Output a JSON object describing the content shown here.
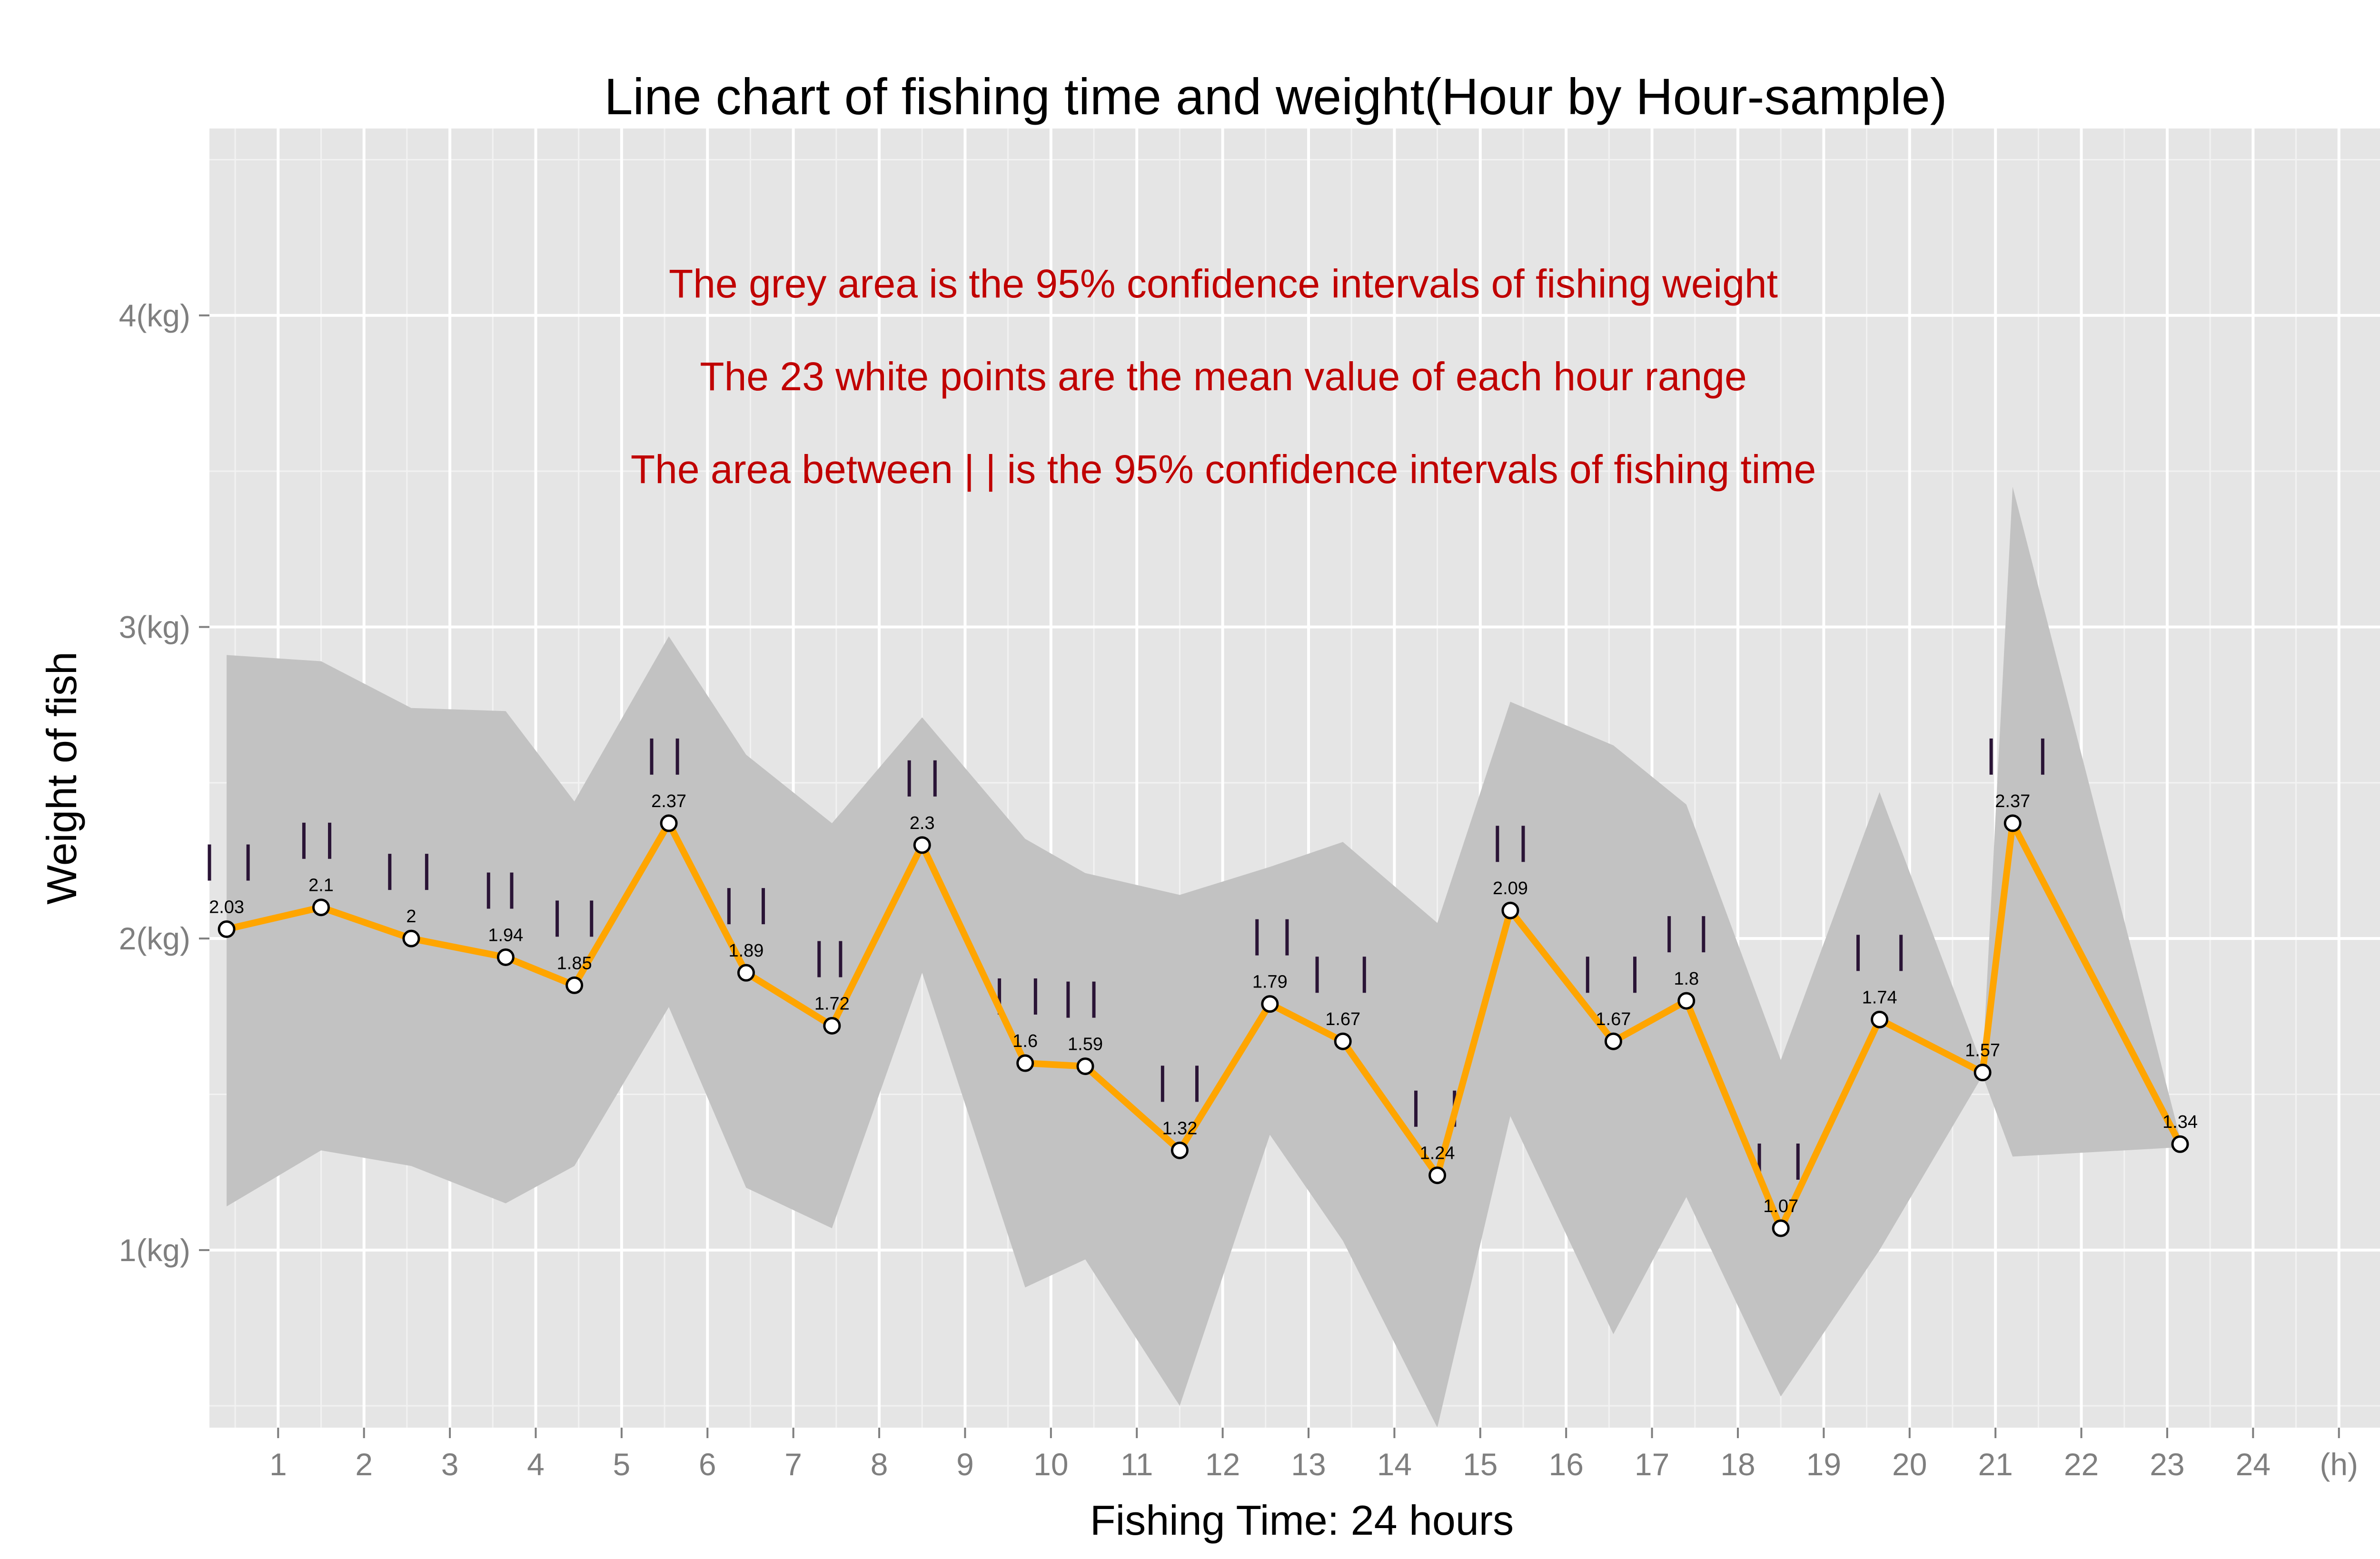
{
  "chart_data": {
    "type": "line",
    "title": "Line chart of fishing time and weight(Hour by Hour-sample)",
    "xlabel": "Fishing Time: 24 hours",
    "ylabel": "Weight of fish",
    "xlim": [
      0.2,
      25.7
    ],
    "ylim": [
      0.43,
      4.6
    ],
    "x_ticks": [
      1,
      2,
      3,
      4,
      5,
      6,
      7,
      8,
      9,
      10,
      11,
      12,
      13,
      14,
      15,
      16,
      17,
      18,
      19,
      20,
      21,
      22,
      23,
      24
    ],
    "x_tick_labels": [
      "1",
      "2",
      "3",
      "4",
      "5",
      "6",
      "7",
      "8",
      "9",
      "10",
      "11",
      "12",
      "13",
      "14",
      "15",
      "16",
      "17",
      "18",
      "19",
      "20",
      "21",
      "22",
      "23",
      "24"
    ],
    "x_unit_label": "(h)",
    "x_unit_position": 25,
    "y_ticks": [
      1,
      2,
      3,
      4
    ],
    "y_tick_labels": [
      "1(kg)",
      "2(kg)",
      "3(kg)",
      "4(kg)"
    ],
    "grid": true,
    "annotations": [
      "The grey area is the 95% confidence intervals of fishing weight",
      "The 23 white points are the mean value of each hour range",
      "The area between | | is the 95% confidence intervals of fishing time"
    ],
    "series": [
      {
        "line_color": "#ffa500",
        "point_color": "#ffffff",
        "band_color": "#c2c2c2",
        "points": [
          {
            "x": 0.4,
            "y": 2.03,
            "label": "2.03",
            "lo": 1.14,
            "hi": 2.91,
            "t_lo": 0.2,
            "t_hi": 0.65
          },
          {
            "x": 1.5,
            "y": 2.1,
            "label": "2.1",
            "lo": 1.32,
            "hi": 2.89,
            "t_lo": 1.3,
            "t_hi": 1.6
          },
          {
            "x": 2.55,
            "y": 2.0,
            "label": "2",
            "lo": 1.27,
            "hi": 2.74,
            "t_lo": 2.3,
            "t_hi": 2.73
          },
          {
            "x": 3.65,
            "y": 1.94,
            "label": "1.94",
            "lo": 1.15,
            "hi": 2.73,
            "t_lo": 3.45,
            "t_hi": 3.72
          },
          {
            "x": 4.45,
            "y": 1.85,
            "label": "1.85",
            "lo": 1.27,
            "hi": 2.44,
            "t_lo": 4.25,
            "t_hi": 4.65
          },
          {
            "x": 5.55,
            "y": 2.37,
            "label": "2.37",
            "lo": 1.78,
            "hi": 2.97,
            "t_lo": 5.35,
            "t_hi": 5.65
          },
          {
            "x": 6.45,
            "y": 1.89,
            "label": "1.89",
            "lo": 1.2,
            "hi": 2.59,
            "t_lo": 6.25,
            "t_hi": 6.65
          },
          {
            "x": 7.45,
            "y": 1.72,
            "label": "1.72",
            "lo": 1.07,
            "hi": 2.37,
            "t_lo": 7.3,
            "t_hi": 7.55
          },
          {
            "x": 8.5,
            "y": 2.3,
            "label": "2.3",
            "lo": 1.89,
            "hi": 2.71,
            "t_lo": 8.35,
            "t_hi": 8.65
          },
          {
            "x": 9.7,
            "y": 1.6,
            "label": "1.6",
            "lo": 0.88,
            "hi": 2.32,
            "t_lo": 9.4,
            "t_hi": 9.82
          },
          {
            "x": 10.4,
            "y": 1.59,
            "label": "1.59",
            "lo": 0.97,
            "hi": 2.21,
            "t_lo": 10.2,
            "t_hi": 10.5
          },
          {
            "x": 11.5,
            "y": 1.32,
            "label": "1.32",
            "lo": 0.5,
            "hi": 2.14,
            "t_lo": 11.3,
            "t_hi": 11.7
          },
          {
            "x": 12.55,
            "y": 1.79,
            "label": "1.79",
            "lo": 1.37,
            "hi": 2.23,
            "t_lo": 12.4,
            "t_hi": 12.75
          },
          {
            "x": 13.4,
            "y": 1.67,
            "label": "1.67",
            "lo": 1.03,
            "hi": 2.31,
            "t_lo": 13.1,
            "t_hi": 13.65
          },
          {
            "x": 14.5,
            "y": 1.24,
            "label": "1.24",
            "lo": 0.43,
            "hi": 2.05,
            "t_lo": 14.25,
            "t_hi": 14.7
          },
          {
            "x": 15.35,
            "y": 2.09,
            "label": "2.09",
            "lo": 1.43,
            "hi": 2.76,
            "t_lo": 15.2,
            "t_hi": 15.5
          },
          {
            "x": 16.55,
            "y": 1.67,
            "label": "1.67",
            "lo": 0.73,
            "hi": 2.62,
            "t_lo": 16.25,
            "t_hi": 16.8
          },
          {
            "x": 17.4,
            "y": 1.8,
            "label": "1.8",
            "lo": 1.17,
            "hi": 2.43,
            "t_lo": 17.2,
            "t_hi": 17.6
          },
          {
            "x": 18.5,
            "y": 1.07,
            "label": "1.07",
            "lo": 0.53,
            "hi": 1.61,
            "t_lo": 18.25,
            "t_hi": 18.7
          },
          {
            "x": 19.65,
            "y": 1.74,
            "label": "1.74",
            "lo": 1.0,
            "hi": 2.47,
            "t_lo": 19.4,
            "t_hi": 19.9
          },
          {
            "x": 20.85,
            "y": 1.57,
            "label": "1.57",
            "lo": 1.56,
            "hi": 1.59,
            "t_lo": null,
            "t_hi": null
          },
          {
            "x": 21.2,
            "y": 2.37,
            "label": "2.37",
            "lo": 1.3,
            "hi": 3.45,
            "t_lo": 20.95,
            "t_hi": 21.55
          },
          {
            "x": 23.15,
            "y": 1.34,
            "label": "1.34",
            "lo": 1.33,
            "hi": 1.36,
            "t_lo": null,
            "t_hi": null
          }
        ]
      }
    ]
  }
}
